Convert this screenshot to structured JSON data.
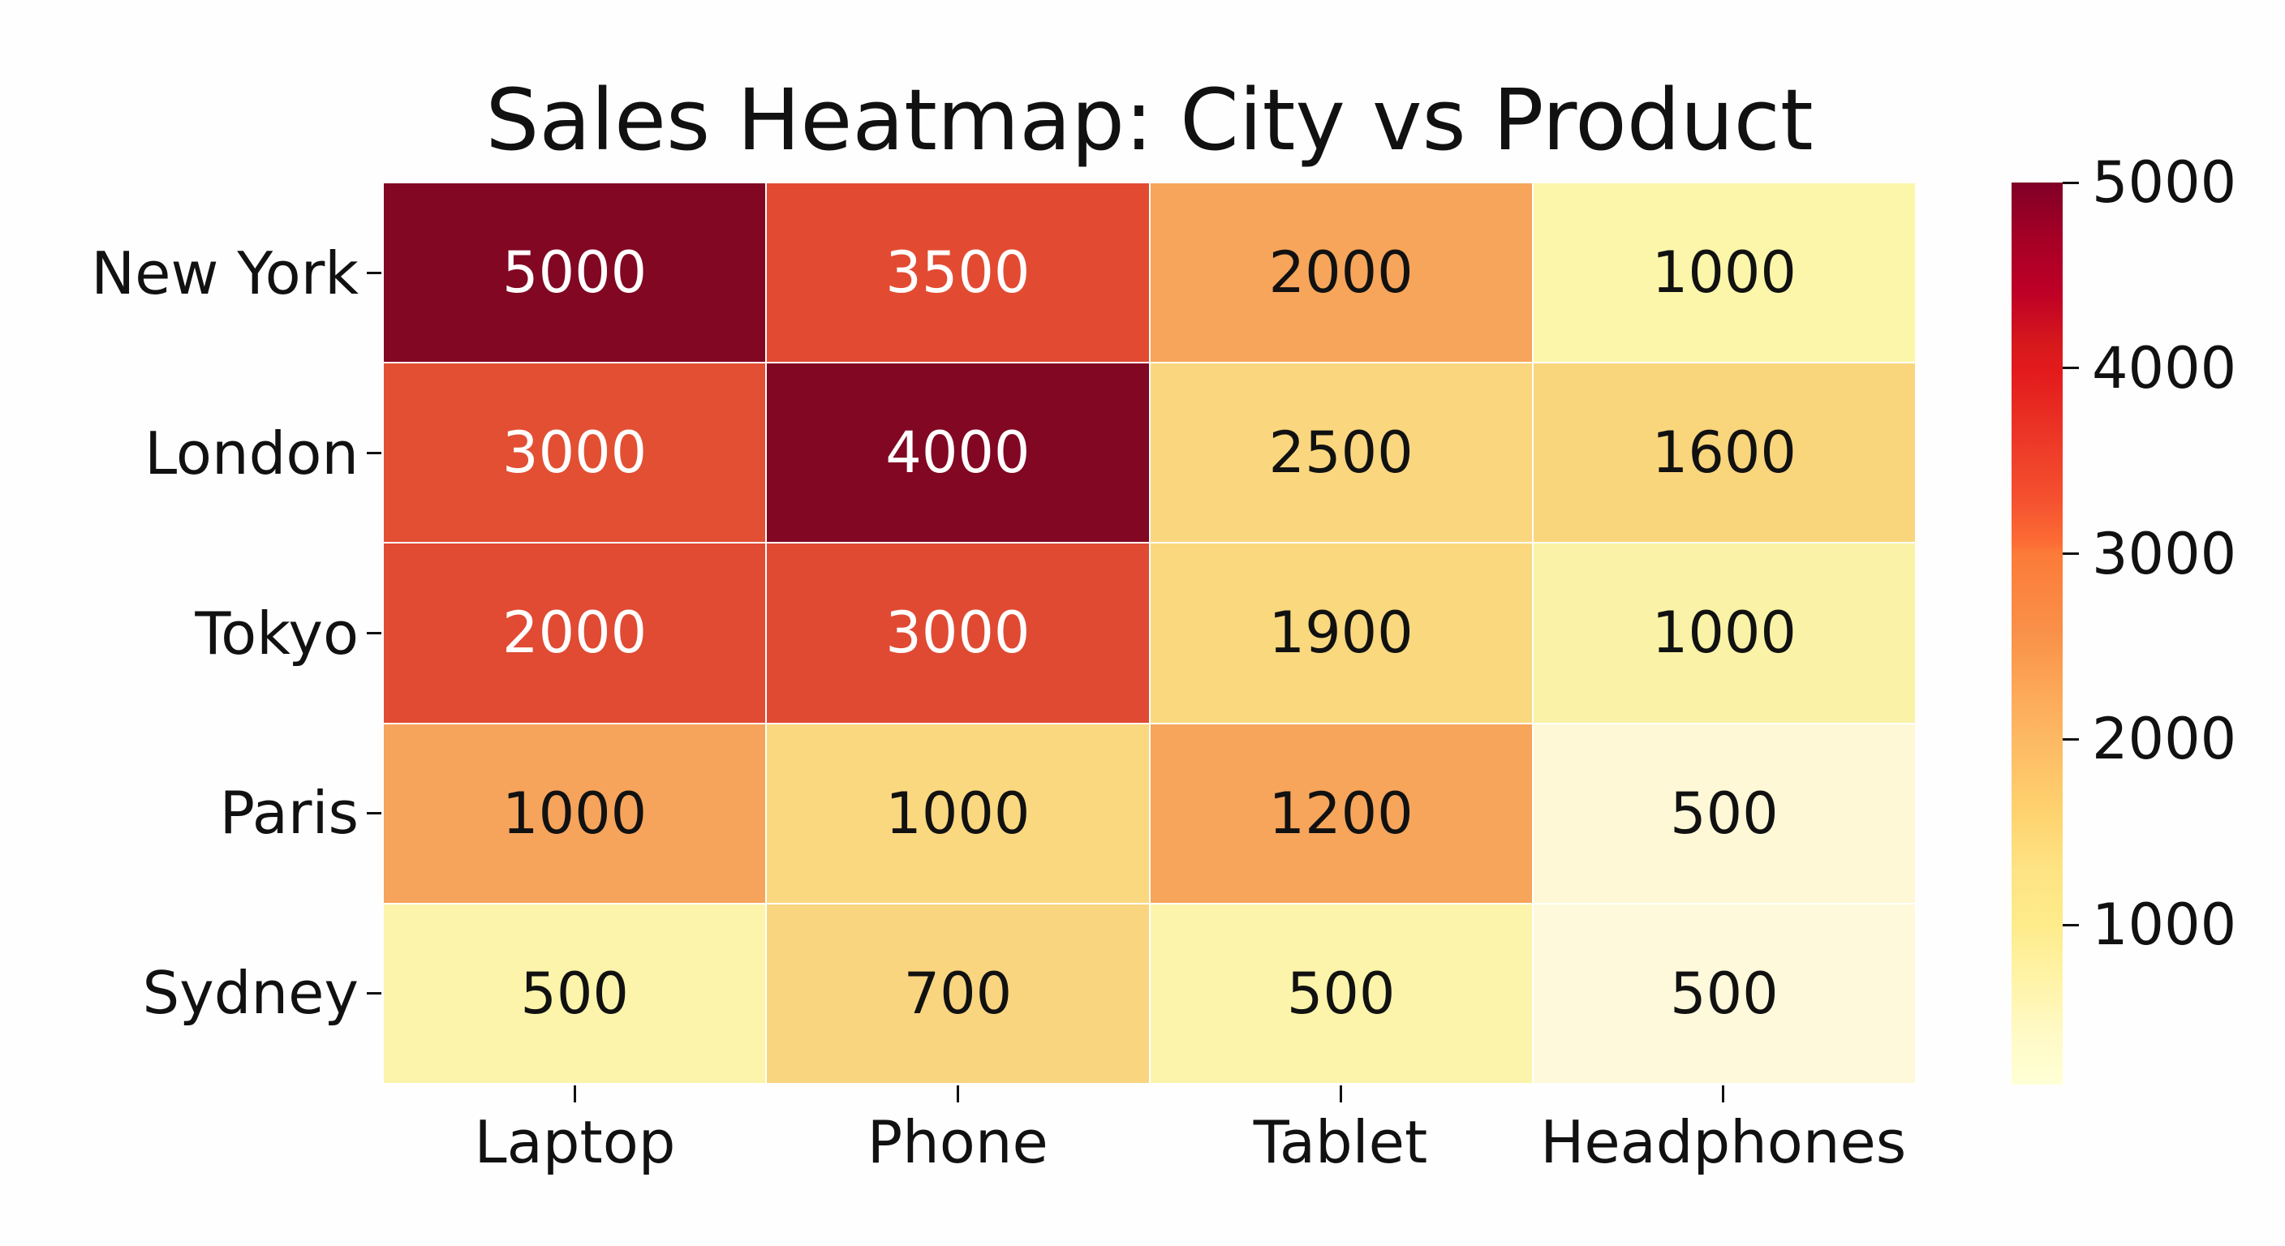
{
  "title": "Sales Heatmap: City vs Product",
  "rows": [
    "New York",
    "London",
    "Tokyo",
    "Paris",
    "Sydney"
  ],
  "columns": [
    "Laptop",
    "Phone",
    "Tablet",
    "Headphones"
  ],
  "cells": [
    [
      {
        "value": "5000",
        "bg": "#820722",
        "fg": "#FFFFFF"
      },
      {
        "value": "3500",
        "bg": "#E24B32",
        "fg": "#FFFFFF"
      },
      {
        "value": "2000",
        "bg": "#F7A55A",
        "fg": "#111111"
      },
      {
        "value": "1000",
        "bg": "#FBF6AA",
        "fg": "#111111"
      }
    ],
    [
      {
        "value": "3000",
        "bg": "#E24F33",
        "fg": "#FFFFFF"
      },
      {
        "value": "4000",
        "bg": "#820722",
        "fg": "#FFFFFF"
      },
      {
        "value": "2500",
        "bg": "#FAD67E",
        "fg": "#111111"
      },
      {
        "value": "1600",
        "bg": "#F9D57C",
        "fg": "#111111"
      }
    ],
    [
      {
        "value": "2000",
        "bg": "#E14A33",
        "fg": "#FFFFFF"
      },
      {
        "value": "3000",
        "bg": "#E04A33",
        "fg": "#FFFFFF"
      },
      {
        "value": "1900",
        "bg": "#F9D87E",
        "fg": "#111111"
      },
      {
        "value": "1000",
        "bg": "#FAF2A6",
        "fg": "#111111"
      }
    ],
    [
      {
        "value": "1000",
        "bg": "#F6A35B",
        "fg": "#111111"
      },
      {
        "value": "1000",
        "bg": "#FAD87F",
        "fg": "#111111"
      },
      {
        "value": "1200",
        "bg": "#F6A55A",
        "fg": "#111111"
      },
      {
        "value": "500",
        "bg": "#FEF8D6",
        "fg": "#111111"
      }
    ],
    [
      {
        "value": "500",
        "bg": "#FBF4AA",
        "fg": "#111111"
      },
      {
        "value": "700",
        "bg": "#F9D57F",
        "fg": "#111111"
      },
      {
        "value": "500",
        "bg": "#FBF4AA",
        "fg": "#111111"
      },
      {
        "value": "500",
        "bg": "#FEF9DA",
        "fg": "#111111"
      }
    ]
  ],
  "colorbar": {
    "ticks": [
      "5000",
      "4000",
      "3000",
      "2000",
      "1000"
    ],
    "colormap": "YlOrRd"
  },
  "chart_data": {
    "type": "heatmap",
    "title": "Sales Heatmap: City vs Product",
    "xlabel": "",
    "ylabel": "",
    "x": [
      "Laptop",
      "Phone",
      "Tablet",
      "Headphones"
    ],
    "y": [
      "New York",
      "London",
      "Tokyo",
      "Paris",
      "Sydney"
    ],
    "values": [
      [
        5000,
        3500,
        2000,
        1000
      ],
      [
        3000,
        4000,
        2500,
        1600
      ],
      [
        2000,
        3000,
        1900,
        1000
      ],
      [
        1000,
        1000,
        1200,
        500
      ],
      [
        500,
        700,
        500,
        500
      ]
    ],
    "annotated": true,
    "colormap": "YlOrRd",
    "colorbar": {
      "ticks": [
        1000,
        2000,
        3000,
        4000,
        5000
      ],
      "range": [
        140,
        5000
      ],
      "position": "right"
    },
    "grid": false,
    "legend": "none"
  }
}
